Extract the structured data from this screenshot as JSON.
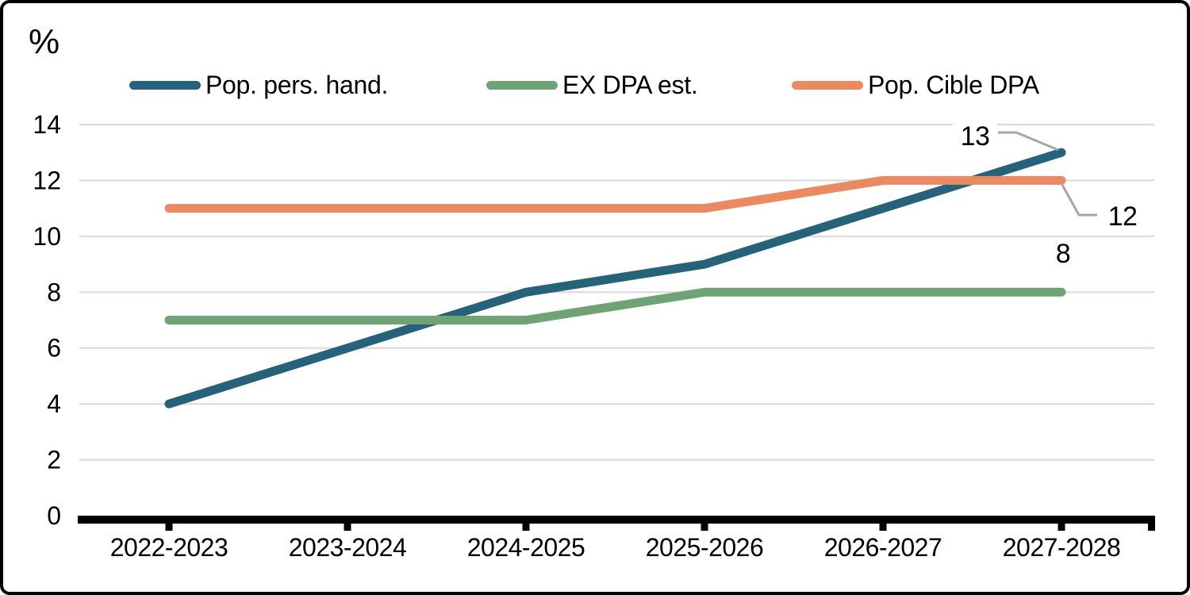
{
  "figure": {
    "unit_label": "%"
  },
  "colors": {
    "background": "#ffffff",
    "border": "#000000",
    "axis": "#000000",
    "gridline": "#d9d9d9",
    "annotation_leader": "#a6a6a6",
    "text": "#000000"
  },
  "chart_data": {
    "type": "line",
    "title": "",
    "ylabel": "%",
    "xlabel": "",
    "ylim": [
      0,
      14
    ],
    "yticks": [
      0,
      2,
      4,
      6,
      8,
      10,
      12,
      14
    ],
    "grid": true,
    "legend_position": "top",
    "categories": [
      "2022-2023",
      "2023-2024",
      "2024-2025",
      "2025-2026",
      "2026-2027",
      "2027-2028"
    ],
    "series": [
      {
        "name": "Pop. pers. hand.",
        "color": "#26637b",
        "values": [
          4,
          6,
          8,
          9,
          11,
          13
        ]
      },
      {
        "name": "EX DPA est.",
        "color": "#6fa376",
        "values": [
          7,
          7,
          7,
          8,
          8,
          8
        ]
      },
      {
        "name": "Pop. Cible DPA",
        "color": "#e98a63",
        "values": [
          11,
          11,
          11,
          11,
          12,
          12
        ]
      }
    ],
    "end_labels": [
      {
        "series": "Pop. pers. hand.",
        "text": "13"
      },
      {
        "series": "EX DPA est.",
        "text": "8"
      },
      {
        "series": "Pop. Cible DPA",
        "text": "12"
      }
    ]
  }
}
